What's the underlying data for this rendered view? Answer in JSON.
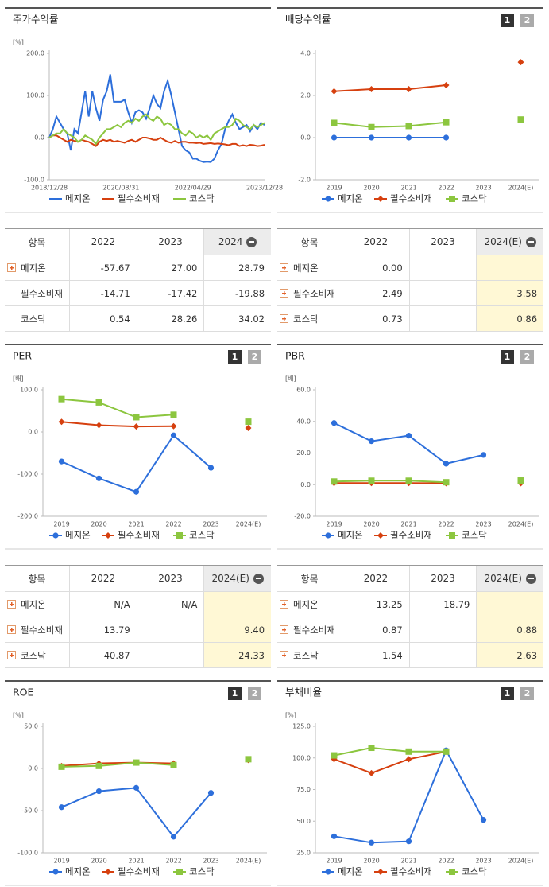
{
  "chart_data": [
    {
      "type": "line",
      "title": "주가수익률",
      "unit": "[%]",
      "legend": "bottom",
      "categories": [
        "2018/12/28",
        null,
        null,
        null,
        null,
        null,
        null,
        null,
        null,
        null,
        null,
        null,
        null,
        null,
        null,
        null,
        null,
        null,
        null,
        null,
        "2020/08/31",
        null,
        null,
        null,
        null,
        null,
        null,
        null,
        null,
        null,
        null,
        null,
        null,
        null,
        null,
        null,
        null,
        null,
        null,
        null,
        "2022/04/29",
        null,
        null,
        null,
        null,
        null,
        null,
        null,
        null,
        null,
        null,
        null,
        null,
        null,
        null,
        null,
        null,
        null,
        null,
        null,
        "2023/12/28"
      ],
      "ylim": [
        -100,
        200
      ],
      "yticks": [
        {
          "value": -100,
          "label": "-100.0"
        },
        {
          "value": 0,
          "label": "0.0"
        },
        {
          "value": 100,
          "label": "100.0"
        },
        {
          "value": 200,
          "label": "200.0"
        }
      ],
      "series": [
        {
          "name": "메지온",
          "color": "#2d6fdb",
          "values": [
            0,
            20,
            50,
            35,
            20,
            10,
            -30,
            20,
            10,
            60,
            110,
            50,
            110,
            70,
            40,
            90,
            110,
            150,
            85,
            85,
            85,
            90,
            60,
            35,
            60,
            65,
            60,
            45,
            70,
            100,
            80,
            70,
            110,
            135,
            100,
            60,
            20,
            -20,
            -30,
            -35,
            -50,
            -50,
            -55,
            -58,
            -57,
            -58,
            -50,
            -30,
            -15,
            20,
            40,
            55,
            35,
            20,
            25,
            30,
            15,
            30,
            20,
            35,
            30
          ]
        },
        {
          "name": "필수소비재",
          "color": "#d6400f",
          "values": [
            0,
            5,
            5,
            0,
            -5,
            -10,
            -5,
            -8,
            -10,
            -5,
            -8,
            -10,
            -15,
            -20,
            -10,
            -5,
            -8,
            -5,
            -10,
            -8,
            -10,
            -12,
            -8,
            -5,
            -10,
            -5,
            0,
            0,
            -2,
            -5,
            -5,
            0,
            -5,
            -10,
            -12,
            -8,
            -12,
            -10,
            -10,
            -12,
            -12,
            -13,
            -12,
            -15,
            -14,
            -13,
            -15,
            -14,
            -15,
            -16,
            -18,
            -15,
            -15,
            -20,
            -18,
            -20,
            -17,
            -18,
            -20,
            -19,
            -17
          ]
        },
        {
          "name": "코스닥",
          "color": "#8cc63f",
          "values": [
            0,
            5,
            10,
            10,
            20,
            10,
            5,
            0,
            -10,
            -5,
            5,
            0,
            -5,
            -15,
            0,
            10,
            20,
            20,
            25,
            30,
            25,
            35,
            40,
            35,
            45,
            40,
            50,
            55,
            45,
            40,
            50,
            45,
            30,
            35,
            30,
            20,
            20,
            10,
            5,
            15,
            10,
            0,
            5,
            0,
            5,
            -5,
            10,
            15,
            20,
            25,
            25,
            30,
            45,
            40,
            30,
            25,
            20,
            30,
            25,
            30,
            35
          ]
        }
      ]
    },
    {
      "type": "point-line",
      "title": "배당수익률",
      "unit": "",
      "pager": [
        "1",
        "2"
      ],
      "legend": "bottom",
      "categories": [
        "2019",
        "2020",
        "2021",
        "2022",
        "2023",
        "2024(E)"
      ],
      "ylim": [
        -2,
        4
      ],
      "yticks": [
        {
          "value": -2,
          "label": "-2.0"
        },
        {
          "value": 0,
          "label": "0.0"
        },
        {
          "value": 2,
          "label": "2.0"
        },
        {
          "value": 4,
          "label": "4.0"
        }
      ],
      "series": [
        {
          "name": "메지온",
          "color": "#2d6fdb",
          "marker": "circle",
          "values": [
            0,
            0,
            0,
            0,
            null,
            null
          ]
        },
        {
          "name": "필수소비재",
          "color": "#d6400f",
          "marker": "diamond",
          "values": [
            2.2,
            2.3,
            2.3,
            2.49,
            null,
            3.58
          ]
        },
        {
          "name": "코스닥",
          "color": "#8cc63f",
          "marker": "square",
          "values": [
            0.7,
            0.5,
            0.55,
            0.73,
            null,
            0.86
          ]
        }
      ]
    },
    {
      "type": "point-line",
      "title": "PER",
      "unit": "[배]",
      "pager": [
        "1",
        "2"
      ],
      "legend": "bottom",
      "categories": [
        "2019",
        "2020",
        "2021",
        "2022",
        "2023",
        "2024(E)"
      ],
      "ylim": [
        -200,
        100
      ],
      "yticks": [
        {
          "value": -200,
          "label": "-200.0"
        },
        {
          "value": -100,
          "label": "-100.0"
        },
        {
          "value": 0,
          "label": "0.0"
        },
        {
          "value": 100,
          "label": "100.0"
        }
      ],
      "series": [
        {
          "name": "메지온",
          "color": "#2d6fdb",
          "marker": "circle",
          "values": [
            -70,
            -110,
            -142,
            -8,
            -85,
            null
          ]
        },
        {
          "name": "필수소비재",
          "color": "#d6400f",
          "marker": "diamond",
          "values": [
            24,
            16,
            13,
            13.79,
            null,
            9.4
          ]
        },
        {
          "name": "코스닥",
          "color": "#8cc63f",
          "marker": "square",
          "values": [
            78,
            70,
            35,
            40.87,
            null,
            24.33
          ]
        }
      ]
    },
    {
      "type": "point-line",
      "title": "PBR",
      "unit": "[배]",
      "pager": [
        "1",
        "2"
      ],
      "legend": "bottom",
      "categories": [
        "2019",
        "2020",
        "2021",
        "2022",
        "2023",
        "2024(E)"
      ],
      "ylim": [
        -20,
        60
      ],
      "yticks": [
        {
          "value": -20,
          "label": "-20.0"
        },
        {
          "value": 0,
          "label": "0.0"
        },
        {
          "value": 20,
          "label": "20.0"
        },
        {
          "value": 40,
          "label": "40.0"
        },
        {
          "value": 60,
          "label": "60.0"
        }
      ],
      "series": [
        {
          "name": "메지온",
          "color": "#2d6fdb",
          "marker": "circle",
          "values": [
            39,
            27.5,
            31,
            13.25,
            18.79,
            null
          ]
        },
        {
          "name": "필수소비재",
          "color": "#d6400f",
          "marker": "diamond",
          "values": [
            1,
            1,
            1,
            0.87,
            null,
            0.88
          ]
        },
        {
          "name": "코스닥",
          "color": "#8cc63f",
          "marker": "square",
          "values": [
            2,
            2.5,
            2.5,
            1.54,
            null,
            2.63
          ]
        }
      ]
    },
    {
      "type": "point-line",
      "title": "ROE",
      "unit": "[%]",
      "pager": [
        "1",
        "2"
      ],
      "legend": "bottom",
      "categories": [
        "2019",
        "2020",
        "2021",
        "2022",
        "2023",
        "2024(E)"
      ],
      "ylim": [
        -100,
        50
      ],
      "yticks": [
        {
          "value": -100,
          "label": "-100.0"
        },
        {
          "value": -50,
          "label": "-50.0"
        },
        {
          "value": 0,
          "label": "0.0"
        },
        {
          "value": 50,
          "label": "50.0"
        }
      ],
      "series": [
        {
          "name": "메지온",
          "color": "#2d6fdb",
          "marker": "circle",
          "values": [
            -46,
            -27,
            -23,
            -81,
            -29,
            null
          ]
        },
        {
          "name": "필수소비재",
          "color": "#d6400f",
          "marker": "diamond",
          "values": [
            3,
            6,
            7,
            6,
            null,
            10
          ]
        },
        {
          "name": "코스닥",
          "color": "#8cc63f",
          "marker": "square",
          "values": [
            2,
            3,
            7,
            4,
            null,
            11
          ]
        }
      ]
    },
    {
      "type": "point-line",
      "title": "부채비율",
      "unit": "[%]",
      "pager": [
        "1",
        "2"
      ],
      "legend": "bottom",
      "categories": [
        "2019",
        "2020",
        "2021",
        "2022",
        "2023",
        "2024(E)"
      ],
      "ylim": [
        25,
        125
      ],
      "yticks": [
        {
          "value": 25,
          "label": "25.0"
        },
        {
          "value": 50,
          "label": "50.0"
        },
        {
          "value": 75,
          "label": "75.0"
        },
        {
          "value": 100,
          "label": "100.0"
        },
        {
          "value": 125,
          "label": "125.0"
        }
      ],
      "series": [
        {
          "name": "메지온",
          "color": "#2d6fdb",
          "marker": "circle",
          "values": [
            38,
            33,
            34,
            106,
            51,
            null
          ]
        },
        {
          "name": "필수소비재",
          "color": "#d6400f",
          "marker": "diamond",
          "values": [
            99,
            88,
            99,
            105,
            null,
            null
          ]
        },
        {
          "name": "코스닥",
          "color": "#8cc63f",
          "marker": "square",
          "values": [
            102,
            108,
            105,
            105,
            null,
            null
          ]
        }
      ]
    }
  ],
  "tables": [
    {
      "columns": [
        "항목",
        "2022",
        "2023",
        "2024"
      ],
      "highlight_last": false,
      "rows": [
        {
          "label": "메지온",
          "expand": true,
          "cells": [
            "-57.67",
            "27.00",
            "28.79"
          ]
        },
        {
          "label": "필수소비재",
          "expand": false,
          "cells": [
            "-14.71",
            "-17.42",
            "-19.88"
          ]
        },
        {
          "label": "코스닥",
          "expand": false,
          "cells": [
            "0.54",
            "28.26",
            "34.02"
          ]
        }
      ]
    },
    {
      "columns": [
        "항목",
        "2022",
        "2023",
        "2024(E)"
      ],
      "highlight_last": true,
      "rows": [
        {
          "label": "메지온",
          "expand": true,
          "cells": [
            "0.00",
            null,
            null
          ]
        },
        {
          "label": "필수소비재",
          "expand": true,
          "cells": [
            "2.49",
            null,
            "3.58"
          ]
        },
        {
          "label": "코스닥",
          "expand": true,
          "cells": [
            "0.73",
            null,
            "0.86"
          ]
        }
      ]
    },
    {
      "columns": [
        "항목",
        "2022",
        "2023",
        "2024(E)"
      ],
      "highlight_last": true,
      "rows": [
        {
          "label": "메지온",
          "expand": true,
          "cells": [
            "N/A",
            "N/A",
            null
          ]
        },
        {
          "label": "필수소비재",
          "expand": true,
          "cells": [
            "13.79",
            null,
            "9.40"
          ]
        },
        {
          "label": "코스닥",
          "expand": true,
          "cells": [
            "40.87",
            null,
            "24.33"
          ]
        }
      ]
    },
    {
      "columns": [
        "항목",
        "2022",
        "2023",
        "2024(E)"
      ],
      "highlight_last": true,
      "rows": [
        {
          "label": "메지온",
          "expand": true,
          "cells": [
            "13.25",
            "18.79",
            null
          ]
        },
        {
          "label": "필수소비재",
          "expand": true,
          "cells": [
            "0.87",
            null,
            "0.88"
          ]
        },
        {
          "label": "코스닥",
          "expand": true,
          "cells": [
            "1.54",
            null,
            "2.63"
          ]
        }
      ]
    }
  ]
}
